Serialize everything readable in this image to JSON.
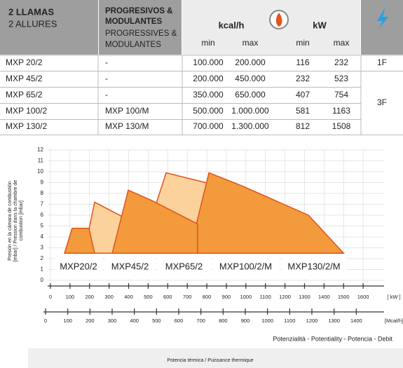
{
  "table": {
    "header": {
      "col1": [
        "2 LLAMAS",
        "2 ALLURES"
      ],
      "col2": [
        "PROGRESIVOS &",
        "MODULANTES"
      ],
      "col2_alt": [
        "PROGRESSIVES &",
        "MODULANTES"
      ],
      "kcal": "kcal/h",
      "kw": "kW",
      "min": "min",
      "max": "max"
    },
    "rows": [
      [
        "MXP 20/2",
        "-",
        "100.000",
        "200.000",
        "116",
        "232"
      ],
      [
        "MXP 45/2",
        "-",
        "200.000",
        "450.000",
        "232",
        "523"
      ],
      [
        "MXP 65/2",
        "-",
        "350.000",
        "650.000",
        "407",
        "754"
      ],
      [
        "MXP 100/2",
        "MXP 100/M",
        "500.000",
        "1.000.000",
        "581",
        "1163"
      ],
      [
        "MXP 130/2",
        "MXP 130/M",
        "700.000",
        "1.300.000",
        "812",
        "1508"
      ]
    ],
    "phase": [
      "1F",
      "3F"
    ]
  },
  "chart_data": {
    "type": "area",
    "ylabel": [
      "Presión en la cámara de combustión",
      "[mbar] / Pression dans la chambre de",
      "combustion [mbar]"
    ],
    "xlabel": "Potenzialità - Potentiality - Potencia - Debit",
    "footer": "Potencia térmica / Puissance thermique",
    "x_unit": "[ kW ]",
    "x2_unit": "[Mcal/h]",
    "ylim": [
      0,
      12
    ],
    "yticks": [
      0,
      1,
      2,
      3,
      4,
      5,
      6,
      7,
      8,
      9,
      10,
      11,
      12
    ],
    "xlim": [
      0,
      1700
    ],
    "xticks": [
      0,
      100,
      200,
      300,
      400,
      500,
      600,
      700,
      800,
      900,
      1000,
      1100,
      1200,
      1300,
      1400,
      1500,
      1600
    ],
    "x2lim": [
      0,
      1500
    ],
    "x2ticks": [
      0,
      100,
      200,
      300,
      400,
      500,
      600,
      700,
      800,
      900,
      1000,
      1100,
      1200,
      1300,
      1400
    ],
    "grid": true,
    "series": [
      {
        "name": "MXP100/2/M",
        "color": "#fcd29c",
        "x": [
          459,
          592,
          997,
          1170,
          1170
        ],
        "values": [
          2.5,
          9.9,
          8.1,
          6.1,
          2.5
        ]
      },
      {
        "name": "MXP130/2/M",
        "color": "#f39a3c",
        "x": [
          710,
          811,
          980,
          1320,
          1500
        ],
        "values": [
          2.5,
          9.9,
          8.7,
          6.0,
          2.5
        ]
      },
      {
        "name": "MXP45/2",
        "color": "#fcd29c",
        "x": [
          172,
          226,
          513,
          513
        ],
        "values": [
          2.5,
          7.2,
          4.5,
          2.5
        ]
      },
      {
        "name": "MXP65/2",
        "color": "#f39a3c",
        "x": [
          316,
          398,
          513,
          753,
          753
        ],
        "values": [
          2.5,
          8.3,
          7.4,
          5.2,
          2.5
        ]
      },
      {
        "name": "MXP20/2",
        "color": "#f39a3c",
        "x": [
          72,
          111,
          197,
          226
        ],
        "values": [
          2.5,
          4.8,
          4.8,
          2.5
        ]
      }
    ]
  }
}
